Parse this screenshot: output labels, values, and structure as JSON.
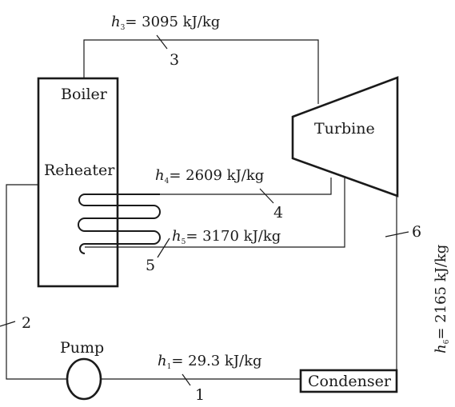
{
  "components": {
    "boiler": "Boiler",
    "reheater": "Reheater",
    "turbine": "Turbine",
    "pump": "Pump",
    "condenser": "Condenser"
  },
  "states": {
    "1": {
      "number": "1",
      "symbol": "h",
      "sub": "1",
      "value": "= 29.3 kJ/kg"
    },
    "2": {
      "number": "2"
    },
    "3": {
      "number": "3",
      "symbol": "h",
      "sub": "3",
      "value": "= 3095 kJ/kg"
    },
    "4": {
      "number": "4",
      "symbol": "h",
      "sub": "4",
      "value": "= 2609 kJ/kg"
    },
    "5": {
      "number": "5",
      "symbol": "h",
      "sub": "5",
      "value": "= 3170 kJ/kg"
    },
    "6": {
      "number": "6",
      "symbol": "h",
      "sub": "6",
      "value": "= 2165 kJ/kg"
    }
  }
}
